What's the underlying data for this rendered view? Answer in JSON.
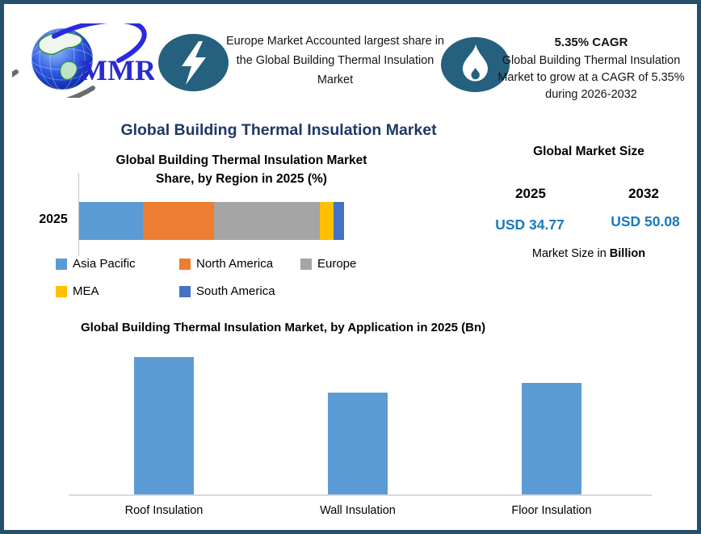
{
  "brand": {
    "logo_text": "MMR"
  },
  "colors": {
    "frame_border": "#24506E",
    "icon_circle": "#25607F",
    "main_title": "#1F3864",
    "usd_value_blue": "#1879BE",
    "bar_blue": "#5B9BD5",
    "axis_gray": "#D9D9D9"
  },
  "icons": {
    "left_badge": "lightning-icon",
    "right_badge": "flame-icon",
    "logo": "globe-logo"
  },
  "header": {
    "highlight_left": {
      "text": "Europe Market Accounted largest share in the Global Building Thermal Insulation Market"
    },
    "highlight_right": {
      "title": "5.35% CAGR",
      "text": "Global Building Thermal Insulation Market to grow at a CAGR of 5.35% during 2026-2032"
    }
  },
  "main_title": "Global Building Thermal Insulation Market",
  "market_size_panel": {
    "title": "Global Market Size",
    "years": [
      "2025",
      "2032"
    ],
    "values": [
      "USD 34.77",
      "USD 50.08"
    ],
    "note_prefix": "Market Size in ",
    "note_bold": "Billion"
  },
  "chart_data": [
    {
      "type": "bar",
      "stacked": true,
      "orientation": "horizontal",
      "title": "Global Building Thermal Insulation Market Share, by Region in 2025 (%)",
      "title_lines": [
        "Global Building Thermal Insulation Market",
        "Share, by Region in 2025 (%)"
      ],
      "categories": [
        "2025"
      ],
      "series": [
        {
          "name": "Asia Pacific",
          "color": "#5B9BD5",
          "values": [
            24
          ]
        },
        {
          "name": "North America",
          "color": "#ED7D31",
          "values": [
            27
          ]
        },
        {
          "name": "Europe",
          "color": "#A5A5A5",
          "values": [
            40
          ]
        },
        {
          "name": "MEA",
          "color": "#FFC000",
          "values": [
            5
          ]
        },
        {
          "name": "South America",
          "color": "#4472C4",
          "values": [
            4
          ]
        }
      ],
      "unit": "%",
      "xlim": [
        0,
        100
      ],
      "legend_position": "bottom",
      "grid": false,
      "values_estimated_from_pixels": true
    },
    {
      "type": "bar",
      "title": "Global Building Thermal Insulation Market, by Application in 2025 (Bn)",
      "categories": [
        "Roof Insulation",
        "Wall Insulation",
        "Floor Insulation"
      ],
      "values": [
        13.5,
        10.0,
        11.0
      ],
      "unit": "Bn",
      "bar_color": "#5B9BD5",
      "ylim": [
        0,
        13.5
      ],
      "grid": false,
      "legend_position": "none",
      "values_estimated_from_pixels": true
    }
  ]
}
